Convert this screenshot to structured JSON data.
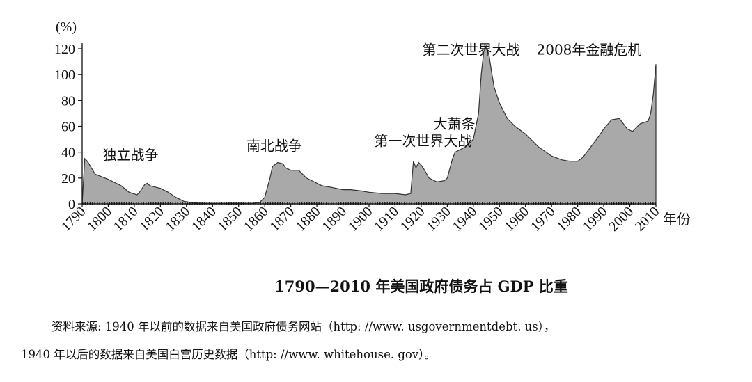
{
  "chart_data": {
    "type": "area",
    "ylabel": "(%)",
    "xunit": "年份",
    "xlim": [
      1790,
      2010
    ],
    "ylim": [
      0,
      120
    ],
    "yticks": [
      0,
      20,
      40,
      60,
      80,
      100,
      120
    ],
    "xticks": [
      1790,
      1800,
      1810,
      1820,
      1830,
      1840,
      1850,
      1860,
      1870,
      1880,
      1890,
      1900,
      1910,
      1920,
      1930,
      1940,
      1950,
      1960,
      1970,
      1980,
      1990,
      2000,
      2010
    ],
    "fill_color": "#a9a9a9",
    "line_color": "#333333",
    "grid": false,
    "x": [
      1790,
      1791,
      1792,
      1795,
      1800,
      1802,
      1805,
      1808,
      1811,
      1812,
      1814,
      1815,
      1816,
      1818,
      1820,
      1823,
      1826,
      1829,
      1832,
      1835,
      1840,
      1845,
      1850,
      1855,
      1858,
      1860,
      1862,
      1863,
      1865,
      1867,
      1868,
      1870,
      1873,
      1876,
      1879,
      1882,
      1885,
      1890,
      1893,
      1897,
      1900,
      1905,
      1910,
      1914,
      1916,
      1917,
      1918,
      1919,
      1920,
      1921,
      1923,
      1926,
      1929,
      1930,
      1932,
      1933,
      1935,
      1937,
      1939,
      1940,
      1942,
      1943,
      1944,
      1945,
      1946,
      1947,
      1948,
      1950,
      1953,
      1956,
      1960,
      1965,
      1970,
      1974,
      1977,
      1980,
      1982,
      1985,
      1988,
      1990,
      1993,
      1996,
      1999,
      2001,
      2004,
      2007,
      2008,
      2009,
      2010
    ],
    "values": [
      0.5,
      35,
      33,
      23,
      19,
      17,
      14,
      9,
      7,
      9,
      15,
      16,
      14,
      13,
      12,
      9,
      5,
      2,
      1,
      0.5,
      0.5,
      0.5,
      0.5,
      0.5,
      1,
      5,
      20,
      29,
      32,
      31,
      28,
      26,
      26,
      20,
      17,
      14,
      13,
      11,
      11,
      10,
      9,
      8,
      8,
      7,
      8,
      33,
      28,
      32,
      30,
      27,
      20,
      17,
      18,
      20,
      35,
      40,
      42,
      44,
      48,
      50,
      70,
      100,
      118,
      122,
      115,
      102,
      90,
      78,
      66,
      60,
      54,
      44,
      37,
      34,
      33,
      33,
      36,
      44,
      52,
      58,
      65,
      66,
      58,
      56,
      62,
      64,
      70,
      85,
      108
    ],
    "annotations": [
      {
        "text": "独立战争",
        "x": 1792,
        "y": 33
      },
      {
        "text": "南北战争",
        "x": 1865,
        "y": 32
      },
      {
        "text": "第一次世界大战",
        "x": 1918,
        "y": 33
      },
      {
        "text": "大萧条",
        "x": 1933,
        "y": 48
      },
      {
        "text": "第二次世界大战",
        "x": 1945,
        "y": 122
      },
      {
        "text": "2008年金融危机",
        "x": 2008,
        "y": 108
      }
    ]
  },
  "caption": "1790—2010 年美国政府债务占 GDP 比重",
  "source": {
    "line1": "资料来源: 1940 年以前的数据来自美国政府债务网站（http: //www. usgovernmentdebt. us），",
    "line2": "1940 年以后的数据来自美国白宫历史数据（http: //www. whitehouse. gov）。"
  }
}
